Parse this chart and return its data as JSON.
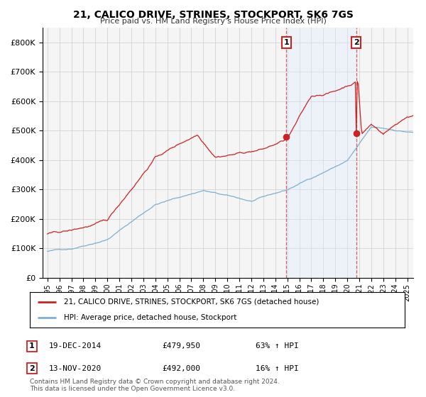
{
  "title": "21, CALICO DRIVE, STRINES, STOCKPORT, SK6 7GS",
  "subtitle": "Price paid vs. HM Land Registry's House Price Index (HPI)",
  "ylim": [
    0,
    850000
  ],
  "yticks": [
    0,
    100000,
    200000,
    300000,
    400000,
    500000,
    600000,
    700000,
    800000
  ],
  "hpi_color": "#7bafd4",
  "price_color": "#cc2222",
  "background_color": "#ffffff",
  "plot_bg_color": "#f5f5f5",
  "shaded_region_color": "#ddeeff",
  "marker1_date_str": "19-DEC-2014",
  "marker1_price": 479950,
  "marker1_pct": "63%",
  "marker2_date_str": "13-NOV-2020",
  "marker2_price": 492000,
  "marker2_pct": "16%",
  "legend_line1": "21, CALICO DRIVE, STRINES, STOCKPORT, SK6 7GS (detached house)",
  "legend_line2": "HPI: Average price, detached house, Stockport",
  "footnote1": "Contains HM Land Registry data © Crown copyright and database right 2024.",
  "footnote2": "This data is licensed under the Open Government Licence v3.0.",
  "xtick_start": 1995,
  "xtick_end": 2025
}
